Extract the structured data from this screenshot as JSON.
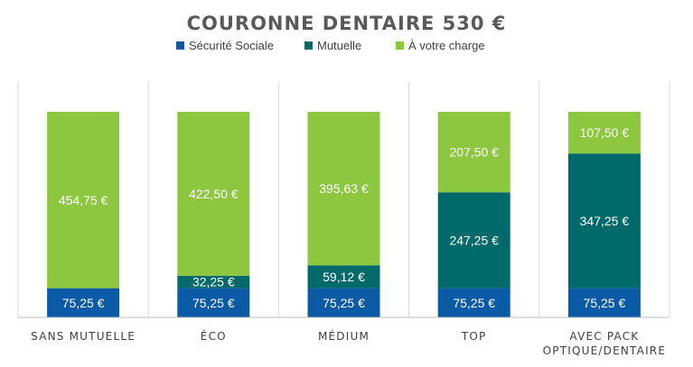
{
  "chart_data": {
    "type": "bar",
    "stacked": true,
    "title": "COURONNE DENTAIRE 530 €",
    "legend_position": "top",
    "grid": false,
    "unit": "€",
    "ylim": [
      0,
      530
    ],
    "categories": [
      [
        "SANS MUTUELLE"
      ],
      [
        "ÉCO"
      ],
      [
        "MÉDIUM"
      ],
      [
        "TOP"
      ],
      [
        "AVEC PACK",
        "OPTIQUE/DENTAIRE"
      ]
    ],
    "series": [
      {
        "name": "Sécurité Sociale",
        "color": "#0b5aa6",
        "values": [
          75.25,
          75.25,
          75.25,
          75.25,
          75.25
        ],
        "labels": [
          "75,25 €",
          "75,25 €",
          "75,25 €",
          "75,25 €",
          "75,25 €"
        ]
      },
      {
        "name": "Mutuelle",
        "color": "#006a6a",
        "values": [
          0,
          32.25,
          59.12,
          247.25,
          347.25
        ],
        "labels": [
          "",
          "32,25 €",
          "59,12 €",
          "247,25 €",
          "347,25 €"
        ]
      },
      {
        "name": "À votre charge",
        "color": "#8dc63f",
        "values": [
          454.75,
          422.5,
          395.63,
          207.5,
          107.5
        ],
        "labels": [
          "454,75 €",
          "422,50 €",
          "395,63 €",
          "207,50 €",
          "107,50 €"
        ]
      }
    ]
  }
}
